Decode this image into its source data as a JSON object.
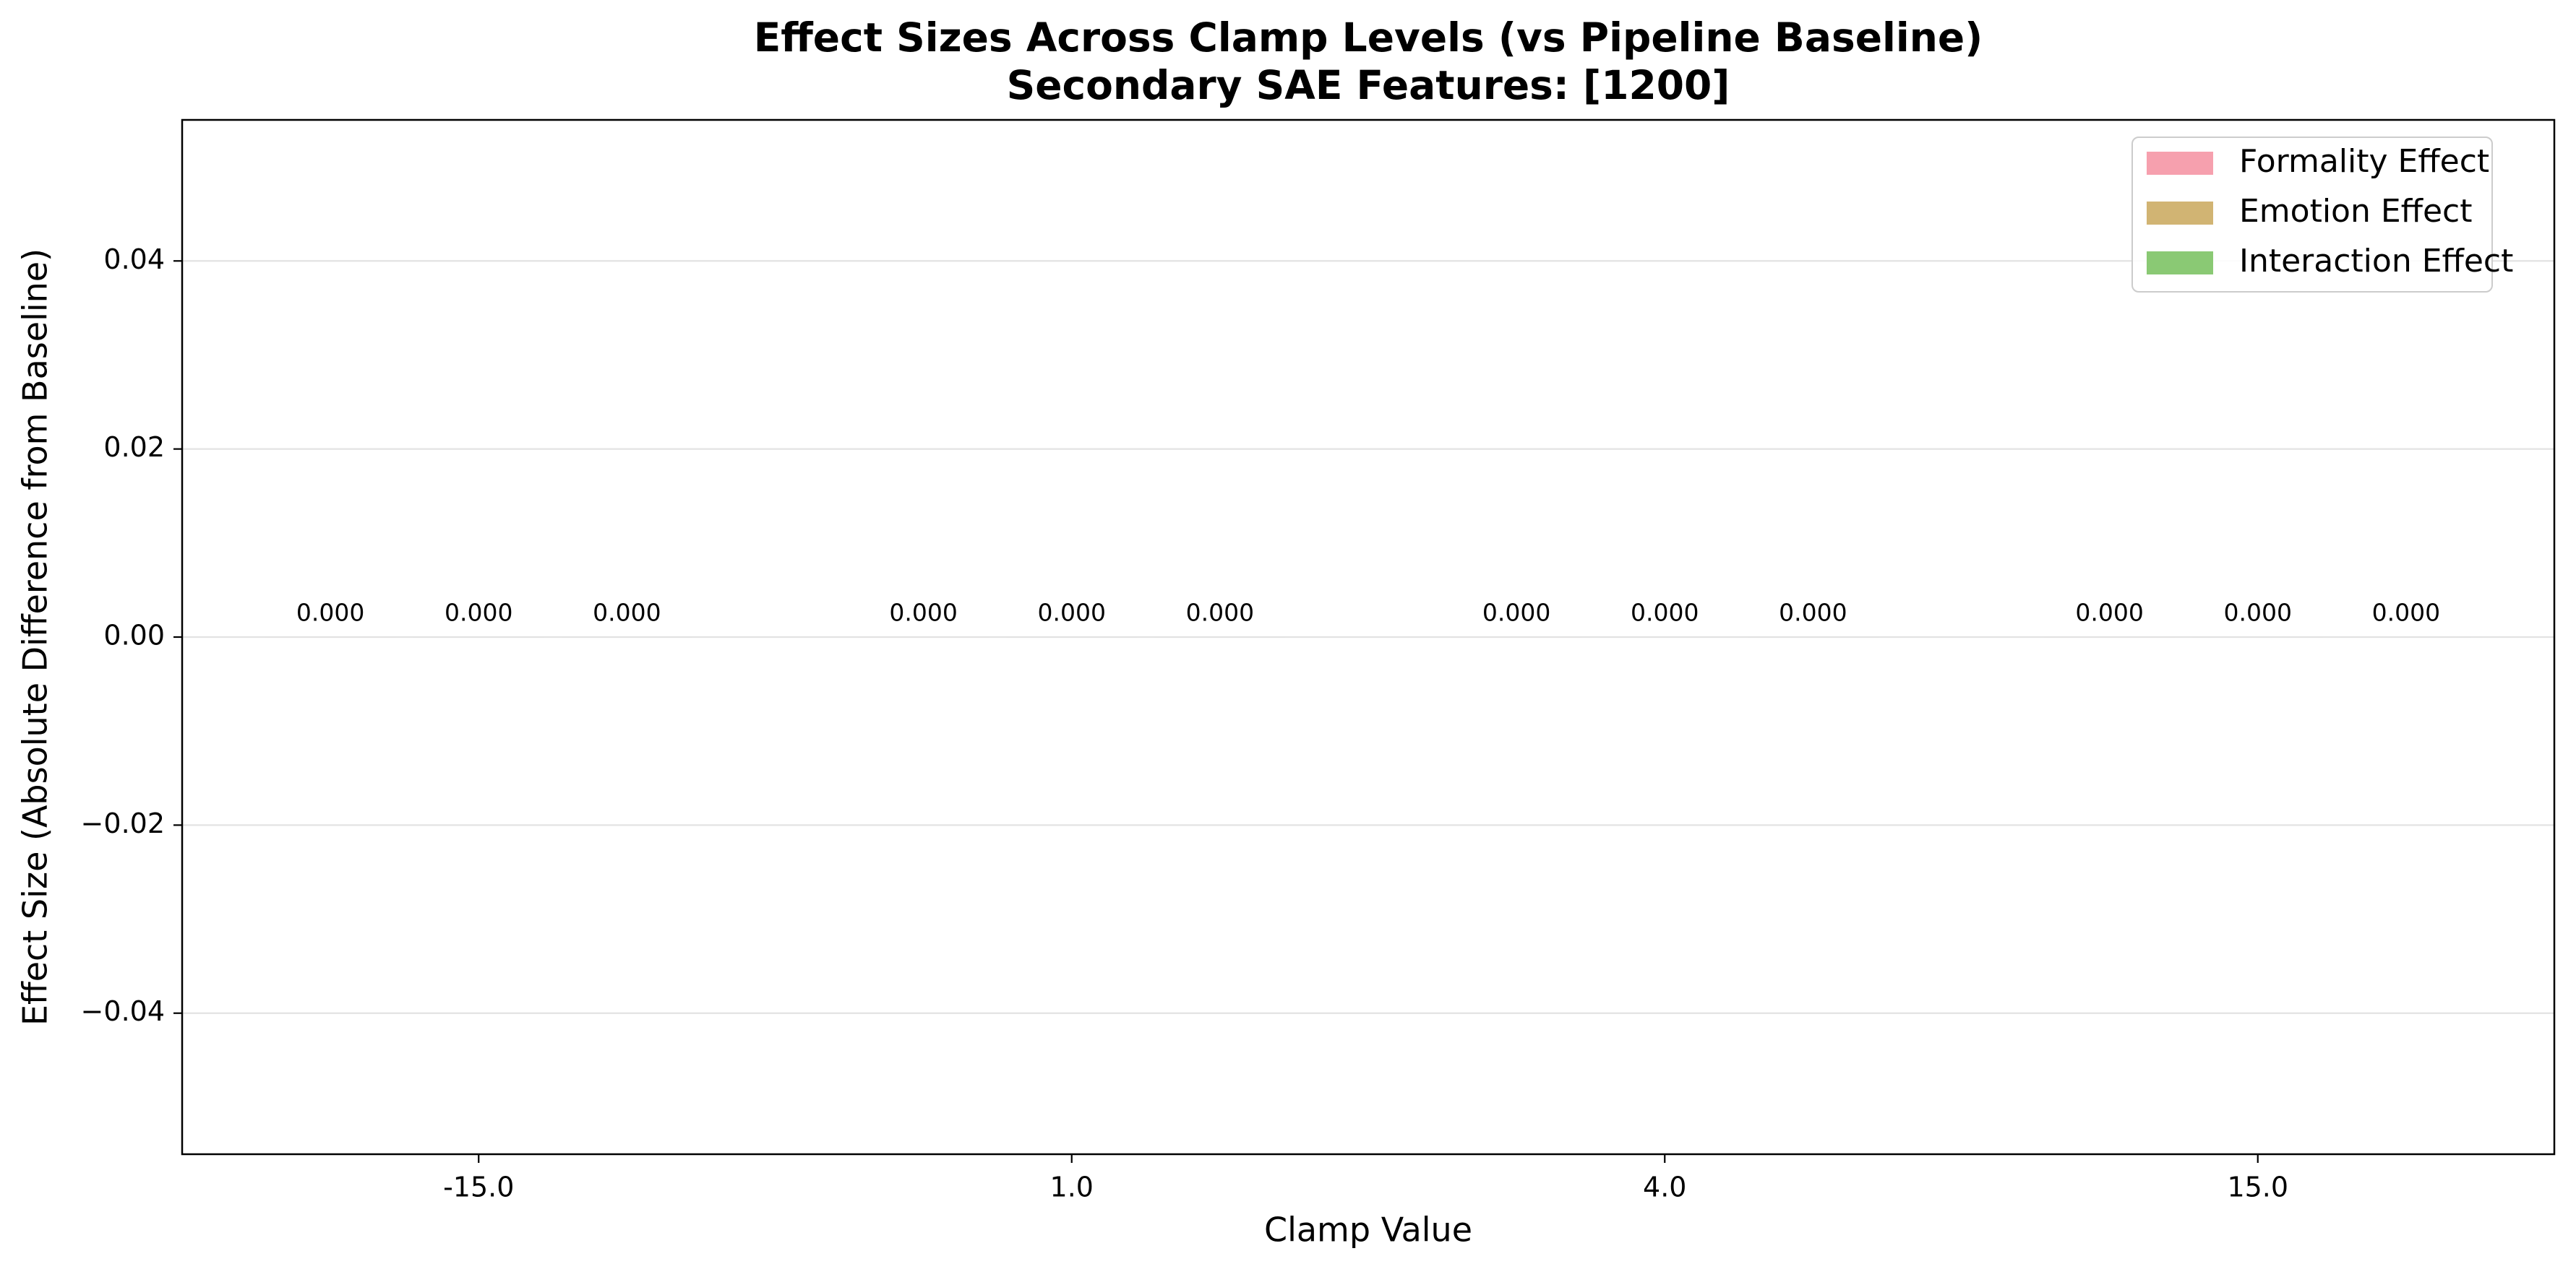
{
  "chart_data": {
    "type": "bar",
    "title": "Effect Sizes Across Clamp Levels (vs Pipeline Baseline)",
    "subtitle": "Secondary SAE Features: [1200]",
    "xlabel": "Clamp Value",
    "ylabel": "Effect Size (Absolute Difference from Baseline)",
    "categories": [
      "-15.0",
      "1.0",
      "4.0",
      "15.0"
    ],
    "ylim": [
      -0.055,
      0.055
    ],
    "yticks": [
      -0.04,
      -0.02,
      0.0,
      0.02,
      0.04
    ],
    "ytick_labels": [
      "−0.04",
      "−0.02",
      "0.00",
      "0.02",
      "0.04"
    ],
    "grid": "horizontal",
    "legend_position": "top-right",
    "series": [
      {
        "name": "Formality Effect",
        "color": "#f48fa0",
        "values": [
          0.0,
          0.0,
          0.0,
          0.0
        ],
        "labels": [
          "0.000",
          "0.000",
          "0.000",
          "0.000"
        ]
      },
      {
        "name": "Emotion Effect",
        "color": "#c9a75a",
        "values": [
          0.0,
          0.0,
          0.0,
          0.0
        ],
        "labels": [
          "0.000",
          "0.000",
          "0.000",
          "0.000"
        ]
      },
      {
        "name": "Interaction Effect",
        "color": "#75c05c",
        "values": [
          0.0,
          0.0,
          0.0,
          0.0
        ],
        "labels": [
          "0.000",
          "0.000",
          "0.000",
          "0.000"
        ]
      }
    ]
  }
}
